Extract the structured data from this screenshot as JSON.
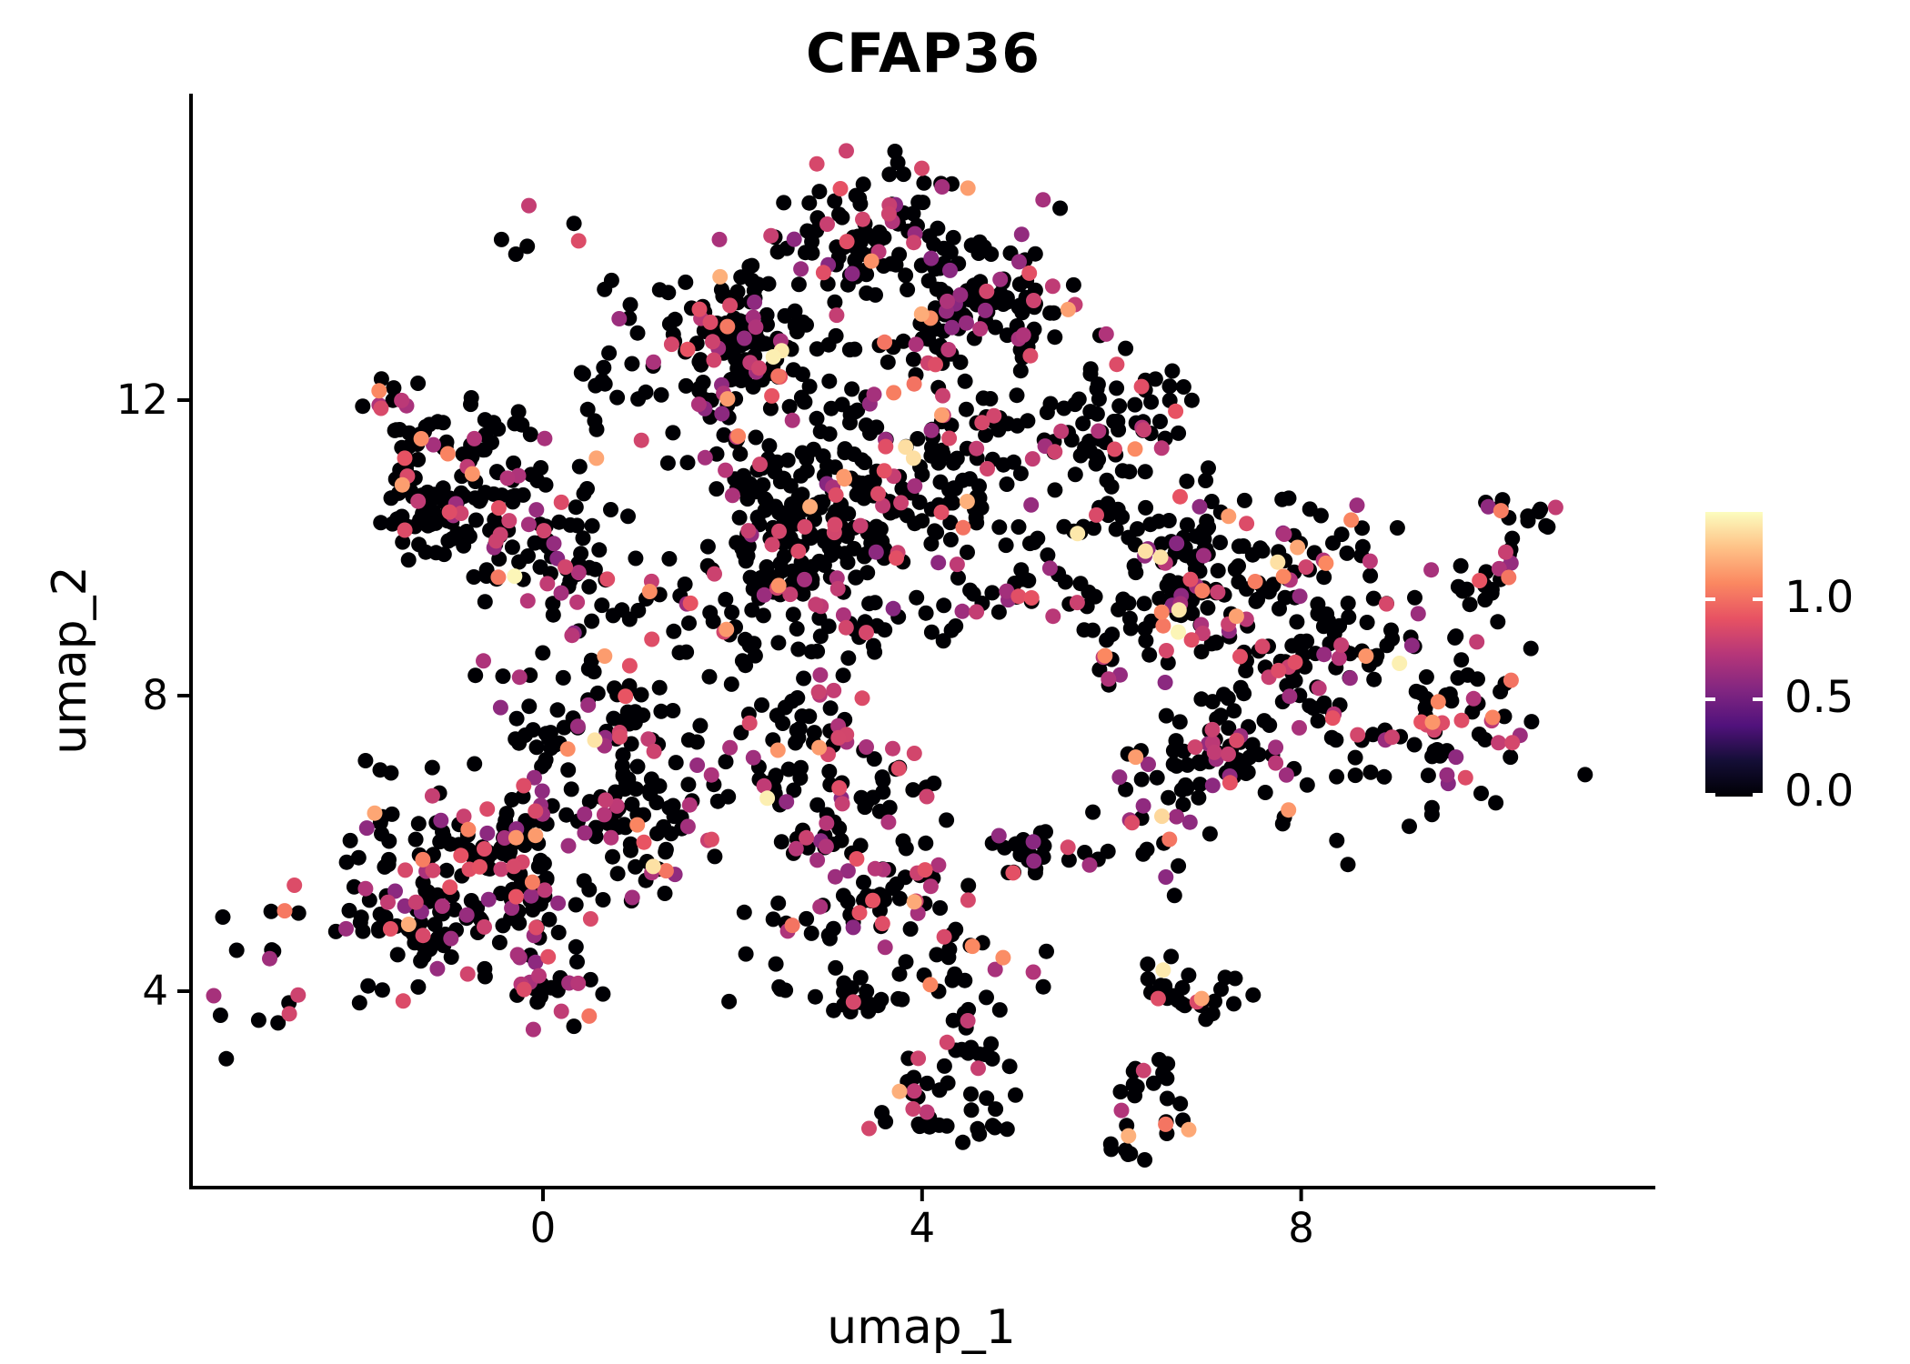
{
  "title": "CFAP36",
  "colors": {
    "background": "#ffffff",
    "axis": "#000000",
    "text": "#000000",
    "colormap_stops": [
      {
        "t": 0.0,
        "color": "#000004"
      },
      {
        "t": 0.125,
        "color": "#140E36"
      },
      {
        "t": 0.25,
        "color": "#51127C"
      },
      {
        "t": 0.375,
        "color": "#822681"
      },
      {
        "t": 0.5,
        "color": "#B63679"
      },
      {
        "t": 0.625,
        "color": "#E75263"
      },
      {
        "t": 0.75,
        "color": "#FB8861"
      },
      {
        "t": 0.875,
        "color": "#FEC287"
      },
      {
        "t": 1.0,
        "color": "#FCFDBF"
      }
    ]
  },
  "chart_data": {
    "type": "scatter",
    "title": "CFAP36",
    "xlabel": "umap_1",
    "ylabel": "umap_2",
    "x_ticks": [
      0,
      4,
      8
    ],
    "y_ticks": [
      4,
      8,
      12
    ],
    "xlim": [
      -3.7,
      11.7
    ],
    "ylim": [
      1.35,
      16.1
    ],
    "grid": false,
    "legend_position": "right-colorbar",
    "colorbar": {
      "ticks": [
        "1.0",
        "0.5",
        "0.0"
      ],
      "tick_values": [
        1.0,
        0.5,
        0.0
      ],
      "vmin": 0.0,
      "vmax": 1.43,
      "colormap": "magma"
    },
    "point_radius_px": 8.5,
    "seed": 20240715,
    "value_distribution": {
      "p_zero": 0.782,
      "p_mid": 0.183,
      "mid_range": [
        0.55,
        0.9
      ],
      "p_high": 0.028,
      "high_range": [
        1.0,
        1.2
      ],
      "p_top": 0.007,
      "top_range": [
        1.28,
        1.41
      ]
    },
    "clusters": [
      {
        "u": 3.38,
        "v": 14.09,
        "su": 0.91,
        "sv": 0.62,
        "n": 140
      },
      {
        "u": 1.56,
        "v": 12.25,
        "su": 1.1,
        "sv": 0.8,
        "n": 115
      },
      {
        "u": 2.42,
        "v": 13.11,
        "su": 0.67,
        "sv": 0.55,
        "n": 80
      },
      {
        "u": 4.71,
        "v": 13.11,
        "su": 0.55,
        "sv": 0.5,
        "n": 70
      },
      {
        "u": 6.05,
        "v": 11.88,
        "su": 0.55,
        "sv": 0.6,
        "n": 55
      },
      {
        "u": -0.55,
        "v": 10.52,
        "su": 0.81,
        "sv": 0.8,
        "n": 125
      },
      {
        "u": -1.32,
        "v": 10.52,
        "su": 0.35,
        "sv": 0.4,
        "n": 35
      },
      {
        "u": -1.12,
        "v": 11.26,
        "su": 0.4,
        "sv": 0.45,
        "n": 40
      },
      {
        "u": 0.41,
        "v": 8.19,
        "su": 0.62,
        "sv": 1.05,
        "n": 100
      },
      {
        "u": 1.37,
        "v": 8.8,
        "su": 0.45,
        "sv": 0.55,
        "n": 45
      },
      {
        "u": 3.85,
        "v": 11.14,
        "su": 1.05,
        "sv": 1.05,
        "n": 200
      },
      {
        "u": 2.61,
        "v": 10.52,
        "su": 0.57,
        "sv": 0.74,
        "n": 80
      },
      {
        "u": 2.71,
        "v": 9.42,
        "su": 0.67,
        "sv": 0.68,
        "n": 90
      },
      {
        "u": 5.48,
        "v": 10.15,
        "su": 0.86,
        "sv": 1.11,
        "n": 80
      },
      {
        "u": 7.49,
        "v": 9.91,
        "su": 0.86,
        "sv": 0.68,
        "n": 100
      },
      {
        "u": 6.53,
        "v": 9.42,
        "su": 0.55,
        "sv": 0.6,
        "n": 50
      },
      {
        "u": 8.63,
        "v": 7.94,
        "su": 1.1,
        "sv": 0.92,
        "n": 190,
        "boost": 1.35
      },
      {
        "u": 7.01,
        "v": 6.83,
        "su": 0.72,
        "sv": 0.62,
        "n": 80,
        "boost": 1.35
      },
      {
        "u": 10.29,
        "v": 10.13,
        "su": 0.31,
        "sv": 0.33,
        "n": 32
      },
      {
        "u": -1.22,
        "v": 5.23,
        "su": 0.77,
        "sv": 0.8,
        "n": 150,
        "boost": 1.3
      },
      {
        "u": -0.26,
        "v": 6.09,
        "su": 0.45,
        "sv": 0.45,
        "n": 50
      },
      {
        "u": -0.12,
        "v": 4.68,
        "su": 0.38,
        "sv": 0.7,
        "n": 55
      },
      {
        "u": 0.8,
        "v": 5.97,
        "su": 0.55,
        "sv": 0.55,
        "n": 60
      },
      {
        "u": 2.71,
        "v": 7.57,
        "su": 0.57,
        "sv": 0.55,
        "n": 60
      },
      {
        "u": 3.38,
        "v": 5.97,
        "su": 0.57,
        "sv": 0.62,
        "n": 70
      },
      {
        "u": 3.09,
        "v": 5.11,
        "su": 0.57,
        "sv": 0.3,
        "n": 40
      },
      {
        "u": 3.09,
        "v": 4.0,
        "su": 0.52,
        "sv": 0.22,
        "n": 28
      },
      {
        "u": 4.14,
        "v": 2.89,
        "su": 0.43,
        "sv": 0.68,
        "n": 55
      },
      {
        "u": 6.51,
        "v": 2.52,
        "su": 0.27,
        "sv": 0.49,
        "n": 28
      },
      {
        "u": 6.96,
        "v": 4.06,
        "su": 0.38,
        "sv": 0.34,
        "n": 26
      },
      {
        "u": 5.86,
        "v": 5.78,
        "su": 0.72,
        "sv": 0.22,
        "n": 22
      },
      {
        "u": 4.62,
        "v": 5.23,
        "su": 0.57,
        "sv": 0.49,
        "n": 25
      }
    ]
  }
}
